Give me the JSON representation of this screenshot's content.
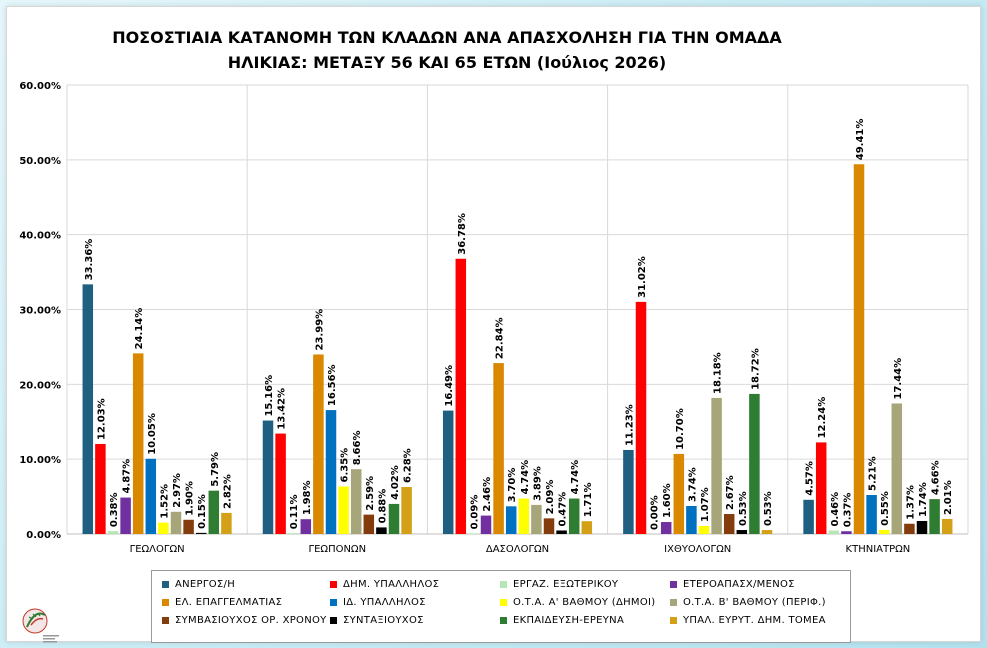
{
  "title_line1": "ΠΟΣΟΣΤΙΑΙΑ ΚΑΤΑΝΟΜΗ ΤΩΝ ΚΛΑΔΩΝ ΑΝΑ ΑΠΑΣΧΟΛΗΣΗ ΓΙΑ ΤΗΝ ΟΜΑΔΑ",
  "title_line2": "ΗΛΙΚΙΑΣ: ΜΕΤΑΞΥ 56 ΚΑΙ 65 ΕΤΩΝ (Ιούλιος 2026)",
  "chart_data": {
    "type": "bar",
    "ylim": [
      0,
      60
    ],
    "yticks": [
      "0.00%",
      "10.00%",
      "20.00%",
      "30.00%",
      "40.00%",
      "50.00%",
      "60.00%"
    ],
    "grid": true,
    "legend_position": "bottom",
    "categories": [
      "ΓΕΩΛΟΓΩΝ",
      "ΓΕΩΠΟΝΩΝ",
      "ΔΑΣΟΛΟΓΩΝ",
      "ΙΧΘΥΟΛΟΓΩΝ",
      "ΚΤΗΝΙΑΤΡΩΝ"
    ],
    "series": [
      {
        "name": "ΑΝΕΡΓΟΣ/Η",
        "color": "#1f5f7f",
        "values": [
          33.36,
          15.16,
          16.49,
          11.23,
          4.57
        ]
      },
      {
        "name": "ΔΗΜ. ΥΠΑΛΛΗΛΟΣ",
        "color": "#ff0000",
        "values": [
          12.03,
          13.42,
          36.78,
          31.02,
          12.24
        ]
      },
      {
        "name": "ΕΡΓΑΖ. ΕΞΩΤΕΡΙΚΟΥ",
        "color": "#b5e6b5",
        "values": [
          0.38,
          0.11,
          0.09,
          0.0,
          0.46
        ]
      },
      {
        "name": "ΕΤΕΡΟΑΠΑΣΧ/ΜΕΝΟΣ",
        "color": "#7030a0",
        "values": [
          4.87,
          1.98,
          2.46,
          1.6,
          0.37
        ]
      },
      {
        "name": "ΕΛ. ΕΠΑΓΓΕΛΜΑΤΙΑΣ",
        "color": "#d98800",
        "values": [
          24.14,
          23.99,
          22.84,
          10.7,
          49.41
        ]
      },
      {
        "name": "ΙΔ. ΥΠΑΛΛΗΛΟΣ",
        "color": "#0070c0",
        "values": [
          10.05,
          16.56,
          3.7,
          3.74,
          5.21
        ]
      },
      {
        "name": "Ο.Τ.Α. Α' ΒΑΘΜΟΥ (ΔΗΜΟΙ)",
        "color": "#ffff00",
        "values": [
          1.52,
          6.35,
          4.74,
          1.07,
          0.55
        ]
      },
      {
        "name": "Ο.Τ.Α. Β' ΒΑΘΜΟΥ (ΠΕΡΙΦ.)",
        "color": "#a6a67a",
        "values": [
          2.97,
          8.66,
          3.89,
          18.18,
          17.44
        ]
      },
      {
        "name": "ΣΥΜΒΑΣΙΟΥΧΟΣ ΟΡ. ΧΡΟΝΟΥ",
        "color": "#843c0c",
        "values": [
          1.9,
          2.59,
          2.09,
          2.67,
          1.37
        ]
      },
      {
        "name": "ΣΥΝΤΑΞΙΟΥΧΟΣ",
        "color": "#000000",
        "values": [
          0.15,
          0.88,
          0.47,
          0.53,
          1.74
        ]
      },
      {
        "name": "ΕΚΠΑΙΔΕΥΣΗ-ΕΡΕΥΝΑ",
        "color": "#2e7d32",
        "values": [
          5.79,
          4.02,
          4.74,
          18.72,
          4.66
        ]
      },
      {
        "name": "ΥΠΑΛ. ΕΥΡΥΤ. ΔΗΜ. ΤΟΜΕΑ",
        "color": "#d4a017",
        "values": [
          2.82,
          6.28,
          1.71,
          0.53,
          2.01
        ]
      }
    ]
  }
}
